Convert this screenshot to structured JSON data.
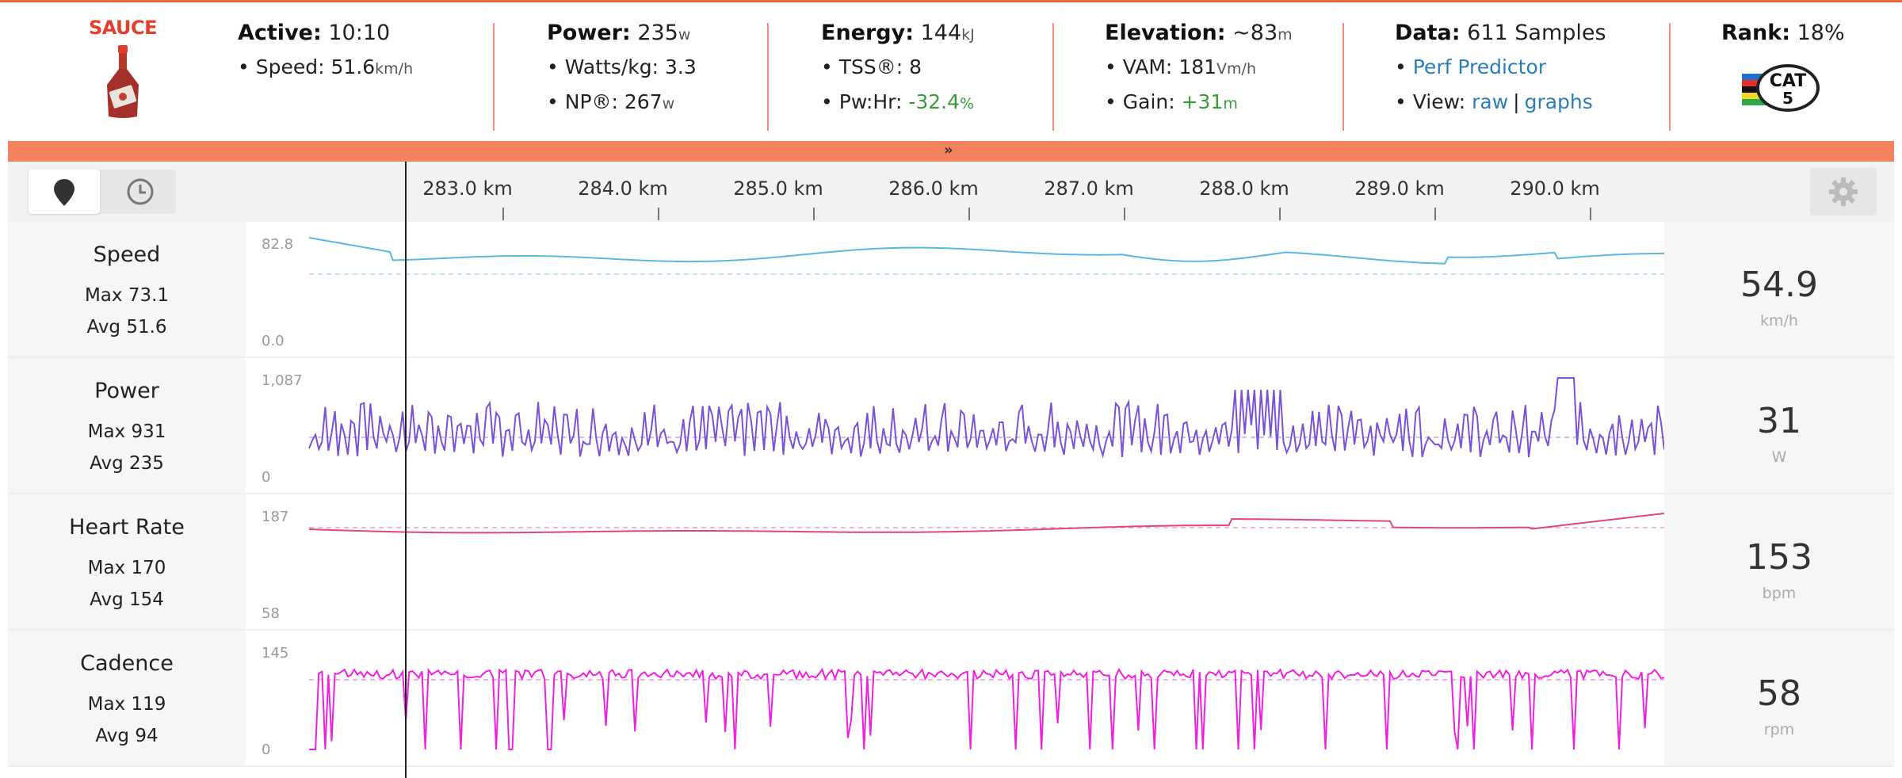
{
  "brand": {
    "name": "SAUCE"
  },
  "stats": {
    "active": {
      "label": "Active:",
      "value": "10:10"
    },
    "speed": {
      "label": "Speed:",
      "value": "51.6",
      "unit": "km/h"
    },
    "power": {
      "label": "Power:",
      "value": "235",
      "unit": "w"
    },
    "watts_kg": {
      "label": "Watts/kg:",
      "value": "3.3"
    },
    "np": {
      "label": "NP®:",
      "value": "267",
      "unit": "w"
    },
    "energy": {
      "label": "Energy:",
      "value": "144",
      "unit": "kJ"
    },
    "tss": {
      "label": "TSS®:",
      "value": "8"
    },
    "pw_hr": {
      "label": "Pw:Hr:",
      "value": "-32.4",
      "unit": "%"
    },
    "elevation": {
      "label": "Elevation:",
      "value": "~83",
      "unit": "m"
    },
    "vam": {
      "label": "VAM:",
      "value": "181",
      "unit": "Vm/h"
    },
    "gain": {
      "label": "Gain:",
      "value": "+31",
      "unit": "m"
    },
    "data": {
      "label": "Data:",
      "value": "611 Samples"
    },
    "perf_predictor": "Perf Predictor",
    "view": {
      "label": "View:",
      "raw": "raw",
      "sep": "|",
      "graphs": "graphs"
    },
    "rank": {
      "label": "Rank:",
      "value": "18%"
    }
  },
  "badge": {
    "text": "CAT",
    "number": "5"
  },
  "collapse_icon": "double-chevron-down-icon",
  "km_axis": [
    "283.0 km",
    "284.0 km",
    "285.0 km",
    "286.0 km",
    "287.0 km",
    "288.0 km",
    "289.0 km",
    "290.0 km"
  ],
  "rows": [
    {
      "name": "Speed",
      "max": "Max 73.1",
      "avg": "Avg 51.6",
      "y_top": "82.8",
      "y_bot": "0.0",
      "current": "54.9",
      "unit": "km/h",
      "color": "#5bb6e0"
    },
    {
      "name": "Power",
      "max": "Max 931",
      "avg": "Avg 235",
      "y_top": "1,087",
      "y_bot": "0",
      "current": "31",
      "unit": "W",
      "color": "#7a52d6"
    },
    {
      "name": "Heart Rate",
      "max": "Max 170",
      "avg": "Avg 154",
      "y_top": "187",
      "y_bot": "58",
      "current": "153",
      "unit": "bpm",
      "color": "#e0457e"
    },
    {
      "name": "Cadence",
      "max": "Max 119",
      "avg": "Avg 94",
      "y_top": "145",
      "y_bot": "0",
      "current": "58",
      "unit": "rpm",
      "color": "#f020e0"
    }
  ]
}
